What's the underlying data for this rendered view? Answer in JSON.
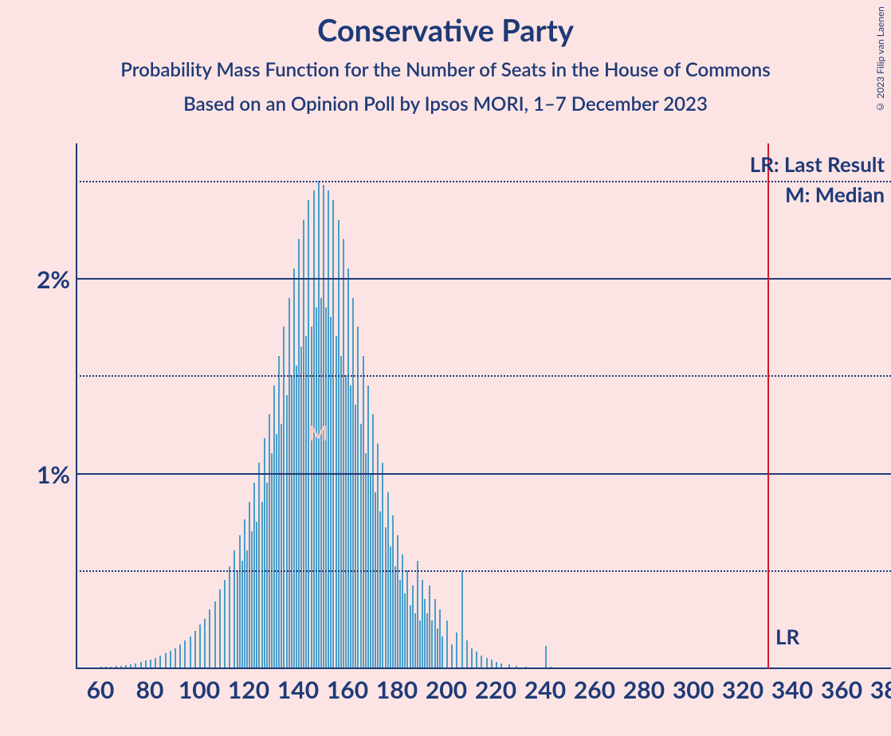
{
  "title": "Conservative Party",
  "subtitle": "Probability Mass Function for the Number of Seats in the House of Commons",
  "subtitle2": "Based on an Opinion Poll by Ipsos MORI, 1–7 December 2023",
  "copyright": "© 2023 Filip van Laenen",
  "legend_lr": "LR: Last Result",
  "legend_m": "M: Median",
  "lr_text": "LR",
  "m_text": "M",
  "chart": {
    "type": "bar",
    "xmin": 50,
    "xmax": 380,
    "ymin": 0,
    "ymax": 2.7,
    "x_ticks": [
      60,
      80,
      100,
      120,
      140,
      160,
      180,
      200,
      220,
      240,
      260,
      280,
      300,
      320,
      340,
      360,
      380
    ],
    "y_solid_ticks": [
      1,
      2
    ],
    "y_dotted_ticks": [
      0.5,
      1.5,
      2.5
    ],
    "y_labels": {
      "1": "1%",
      "2": "2%"
    },
    "lr_position": 330,
    "median_position": 148,
    "bar_color": "#4a9ec9",
    "axis_color": "#1e3a77",
    "lr_line_color": "#d11a2a",
    "background_color": "#fce4e4",
    "title_color": "#1e3a77",
    "title_fontsize": 38,
    "subtitle_fontsize": 24,
    "label_fontsize": 30,
    "legend_fontsize": 26,
    "series": [
      {
        "x": 60,
        "y": 0.005
      },
      {
        "x": 62,
        "y": 0.005
      },
      {
        "x": 64,
        "y": 0.005
      },
      {
        "x": 66,
        "y": 0.007
      },
      {
        "x": 68,
        "y": 0.01
      },
      {
        "x": 70,
        "y": 0.013
      },
      {
        "x": 72,
        "y": 0.018
      },
      {
        "x": 74,
        "y": 0.022
      },
      {
        "x": 76,
        "y": 0.028
      },
      {
        "x": 78,
        "y": 0.035
      },
      {
        "x": 80,
        "y": 0.042
      },
      {
        "x": 82,
        "y": 0.05
      },
      {
        "x": 84,
        "y": 0.06
      },
      {
        "x": 86,
        "y": 0.072
      },
      {
        "x": 88,
        "y": 0.085
      },
      {
        "x": 90,
        "y": 0.1
      },
      {
        "x": 92,
        "y": 0.12
      },
      {
        "x": 94,
        "y": 0.14
      },
      {
        "x": 96,
        "y": 0.16
      },
      {
        "x": 98,
        "y": 0.19
      },
      {
        "x": 100,
        "y": 0.22
      },
      {
        "x": 102,
        "y": 0.25
      },
      {
        "x": 104,
        "y": 0.3
      },
      {
        "x": 106,
        "y": 0.34
      },
      {
        "x": 108,
        "y": 0.4
      },
      {
        "x": 110,
        "y": 0.45
      },
      {
        "x": 112,
        "y": 0.52
      },
      {
        "x": 114,
        "y": 0.6
      },
      {
        "x": 115,
        "y": 0.5
      },
      {
        "x": 116,
        "y": 0.68
      },
      {
        "x": 117,
        "y": 0.55
      },
      {
        "x": 118,
        "y": 0.76
      },
      {
        "x": 119,
        "y": 0.6
      },
      {
        "x": 120,
        "y": 0.85
      },
      {
        "x": 121,
        "y": 0.7
      },
      {
        "x": 122,
        "y": 0.95
      },
      {
        "x": 123,
        "y": 0.75
      },
      {
        "x": 124,
        "y": 1.05
      },
      {
        "x": 125,
        "y": 0.85
      },
      {
        "x": 126,
        "y": 1.18
      },
      {
        "x": 127,
        "y": 0.95
      },
      {
        "x": 128,
        "y": 1.3
      },
      {
        "x": 129,
        "y": 1.1
      },
      {
        "x": 130,
        "y": 1.45
      },
      {
        "x": 131,
        "y": 1.2
      },
      {
        "x": 132,
        "y": 1.6
      },
      {
        "x": 133,
        "y": 1.25
      },
      {
        "x": 134,
        "y": 1.75
      },
      {
        "x": 135,
        "y": 1.4
      },
      {
        "x": 136,
        "y": 1.9
      },
      {
        "x": 137,
        "y": 1.5
      },
      {
        "x": 138,
        "y": 2.05
      },
      {
        "x": 139,
        "y": 1.55
      },
      {
        "x": 140,
        "y": 2.2
      },
      {
        "x": 141,
        "y": 1.65
      },
      {
        "x": 142,
        "y": 2.3
      },
      {
        "x": 143,
        "y": 1.7
      },
      {
        "x": 144,
        "y": 2.4
      },
      {
        "x": 145,
        "y": 1.75
      },
      {
        "x": 146,
        "y": 2.45
      },
      {
        "x": 147,
        "y": 1.85
      },
      {
        "x": 148,
        "y": 2.5
      },
      {
        "x": 149,
        "y": 1.9
      },
      {
        "x": 150,
        "y": 2.48
      },
      {
        "x": 151,
        "y": 1.85
      },
      {
        "x": 152,
        "y": 2.45
      },
      {
        "x": 153,
        "y": 1.8
      },
      {
        "x": 154,
        "y": 2.4
      },
      {
        "x": 155,
        "y": 1.7
      },
      {
        "x": 156,
        "y": 2.3
      },
      {
        "x": 157,
        "y": 1.6
      },
      {
        "x": 158,
        "y": 2.2
      },
      {
        "x": 159,
        "y": 1.5
      },
      {
        "x": 160,
        "y": 2.05
      },
      {
        "x": 161,
        "y": 1.45
      },
      {
        "x": 162,
        "y": 1.9
      },
      {
        "x": 163,
        "y": 1.35
      },
      {
        "x": 164,
        "y": 1.75
      },
      {
        "x": 165,
        "y": 1.25
      },
      {
        "x": 166,
        "y": 1.6
      },
      {
        "x": 167,
        "y": 1.1
      },
      {
        "x": 168,
        "y": 1.45
      },
      {
        "x": 169,
        "y": 1.0
      },
      {
        "x": 170,
        "y": 1.3
      },
      {
        "x": 171,
        "y": 0.9
      },
      {
        "x": 172,
        "y": 1.15
      },
      {
        "x": 173,
        "y": 0.8
      },
      {
        "x": 174,
        "y": 1.05
      },
      {
        "x": 175,
        "y": 0.72
      },
      {
        "x": 176,
        "y": 0.9
      },
      {
        "x": 177,
        "y": 0.62
      },
      {
        "x": 178,
        "y": 0.78
      },
      {
        "x": 179,
        "y": 0.52
      },
      {
        "x": 180,
        "y": 0.68
      },
      {
        "x": 181,
        "y": 0.45
      },
      {
        "x": 182,
        "y": 0.58
      },
      {
        "x": 183,
        "y": 0.38
      },
      {
        "x": 184,
        "y": 0.5
      },
      {
        "x": 185,
        "y": 0.32
      },
      {
        "x": 186,
        "y": 0.42
      },
      {
        "x": 187,
        "y": 0.28
      },
      {
        "x": 188,
        "y": 0.55
      },
      {
        "x": 189,
        "y": 0.24
      },
      {
        "x": 190,
        "y": 0.45
      },
      {
        "x": 191,
        "y": 0.35
      },
      {
        "x": 192,
        "y": 0.28
      },
      {
        "x": 193,
        "y": 0.42
      },
      {
        "x": 194,
        "y": 0.24
      },
      {
        "x": 195,
        "y": 0.35
      },
      {
        "x": 196,
        "y": 0.2
      },
      {
        "x": 197,
        "y": 0.3
      },
      {
        "x": 198,
        "y": 0.16
      },
      {
        "x": 200,
        "y": 0.24
      },
      {
        "x": 202,
        "y": 0.12
      },
      {
        "x": 204,
        "y": 0.18
      },
      {
        "x": 206,
        "y": 0.5
      },
      {
        "x": 208,
        "y": 0.14
      },
      {
        "x": 210,
        "y": 0.1
      },
      {
        "x": 212,
        "y": 0.08
      },
      {
        "x": 214,
        "y": 0.06
      },
      {
        "x": 216,
        "y": 0.05
      },
      {
        "x": 218,
        "y": 0.04
      },
      {
        "x": 220,
        "y": 0.03
      },
      {
        "x": 222,
        "y": 0.02
      },
      {
        "x": 225,
        "y": 0.015
      },
      {
        "x": 228,
        "y": 0.01
      },
      {
        "x": 232,
        "y": 0.005
      },
      {
        "x": 240,
        "y": 0.11
      },
      {
        "x": 242,
        "y": 0.005
      }
    ]
  }
}
